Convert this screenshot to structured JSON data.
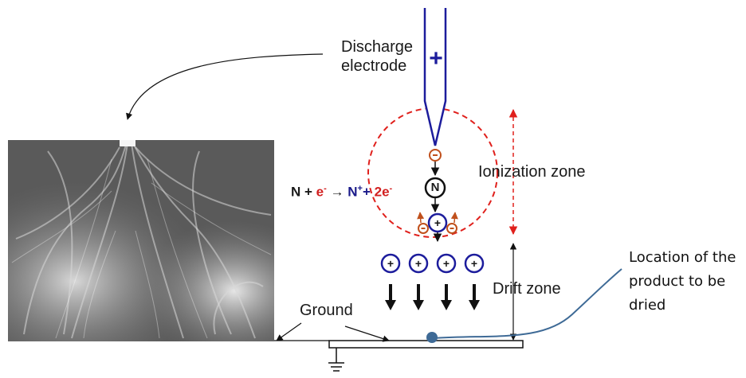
{
  "labels": {
    "discharge_electrode_line1": "Discharge",
    "discharge_electrode_line2": "electrode",
    "electrode_polarity": "+",
    "ionization_zone": "Ionization zone",
    "drift_zone": "Drift zone",
    "ground": "Ground",
    "location_line1": "Location of the",
    "location_line2": "product to be",
    "location_line3": "dried"
  },
  "equation": {
    "n1": "N",
    "plus1": " + ",
    "electron": "e",
    "electron_sup": "-",
    "arrow": " → ",
    "ion": "N",
    "ion_sup": "+",
    "plus2": "+ ",
    "electrons": "2e",
    "electrons_sup": "-"
  },
  "particles": {
    "electron_sign": "-",
    "neutral": "N",
    "ion_sign": "+"
  },
  "colors": {
    "electrode": "#1c1c9c",
    "ionization_circle": "#e0201c",
    "electron": "#c0501c",
    "ion": "#1c1c9c",
    "leader_line": "#3e6a96",
    "arrows": "#111111"
  },
  "icons": {
    "ground": "ground-symbol-icon",
    "photo": "corona-flow-photo"
  }
}
